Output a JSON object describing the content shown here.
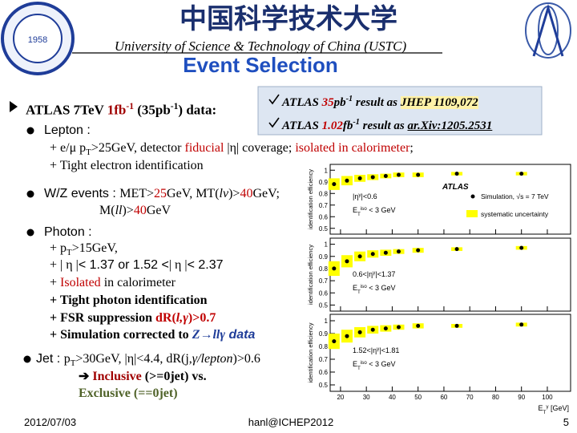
{
  "header": {
    "logo_year": "1958",
    "chinese_title": "中国科学技术大学",
    "university": "University of Science & Technology of China (USTC)",
    "title": "Event Selection"
  },
  "references": [
    [
      {
        "t": "ATLAS "
      },
      {
        "t": "35",
        "c": "#c00000"
      },
      {
        "t": "pb"
      },
      {
        "t": "-1",
        "s": "sup"
      },
      {
        "t": " result as  "
      },
      {
        "t": "JHEP 1109,072",
        "b": true,
        "h": "#fff2a8"
      }
    ],
    [
      {
        "t": "ATLAS "
      },
      {
        "t": "1.02",
        "c": "#c00000"
      },
      {
        "t": "fb"
      },
      {
        "t": "-1",
        "s": "sup"
      },
      {
        "t": " result as "
      },
      {
        "t": "ar.Xiv:1205.2531",
        "b": true,
        "u": true
      }
    ]
  ],
  "summary": [
    {
      "t": "ATLAS  7TeV "
    },
    {
      "t": "1fb",
      "c": "#a00000"
    },
    {
      "t": "-1",
      "s": "sup",
      "c": "#a00000"
    },
    {
      "t": " (35pb"
    },
    {
      "t": "-1",
      "s": "sup"
    },
    {
      "t": ")  data:"
    }
  ],
  "bullets": [
    [
      {
        "t": "Lepton :",
        "f": "sans"
      }
    ],
    [
      {
        "t": "+ e/"
      },
      {
        "t": "μ"
      },
      {
        "t": " p"
      },
      {
        "t": "T",
        "s": "sub"
      },
      {
        "t": ">25GeV, detector "
      },
      {
        "t": "fiducial",
        "c": "#c00000"
      },
      {
        "t": " |"
      },
      {
        "t": "η"
      },
      {
        "t": "| coverage;  "
      },
      {
        "t": "isolated in calorimeter",
        "c": "#c00000"
      },
      {
        "t": ";"
      }
    ],
    [
      {
        "t": "+ Tight electron identification"
      }
    ],
    [
      {
        "t": "W/Z events",
        "f": "sans"
      },
      {
        "t": " : ",
        "f": "sans"
      },
      {
        "t": "MET>"
      },
      {
        "t": "25",
        "c": "#c00000"
      },
      {
        "t": "GeV, MT("
      },
      {
        "t": "lν",
        "i": true
      },
      {
        "t": ")>"
      },
      {
        "t": "40",
        "c": "#c00000"
      },
      {
        "t": "GeV;"
      }
    ],
    [
      {
        "t": "M("
      },
      {
        "t": "ll",
        "i": true
      },
      {
        "t": ")>"
      },
      {
        "t": "40",
        "c": "#c00000"
      },
      {
        "t": "GeV"
      }
    ],
    [
      {
        "t": "Photon :",
        "f": "sans"
      }
    ],
    [
      {
        "t": "+ p"
      },
      {
        "t": "T",
        "s": "sub"
      },
      {
        "t": ">15GeV,"
      }
    ],
    [
      {
        "t": "+ | "
      },
      {
        "t": "η"
      },
      {
        "t": " |"
      },
      {
        "t": "< 1.37 or 1.52 <",
        "f": "sans"
      },
      {
        "t": "| "
      },
      {
        "t": "η"
      },
      {
        "t": " |"
      },
      {
        "t": "< 2.37",
        "f": "sans"
      }
    ],
    [
      {
        "t": "+ "
      },
      {
        "t": "Isolated",
        "c": "#c00000"
      },
      {
        "t": " in calorimeter"
      }
    ],
    [
      {
        "t": "+ Tight photon identification"
      }
    ],
    [
      {
        "t": "+ FSR suppression "
      },
      {
        "t": "dR(",
        "c": "#c00000"
      },
      {
        "t": "l,γ",
        "i": true,
        "c": "#c00000"
      },
      {
        "t": ")>0.7",
        "c": "#c00000"
      }
    ],
    [
      {
        "t": "+ Simulation corrected to "
      },
      {
        "t": "Z",
        "i": true,
        "c": "#1f3d99"
      },
      {
        "t": "→",
        "c": "#1f3d99"
      },
      {
        "t": "llγ",
        "i": true,
        "c": "#1f3d99"
      },
      {
        "t": "  data",
        "f": "sans",
        "i": true,
        "c": "#1f3d99"
      }
    ],
    [
      {
        "t": "Jet",
        "f": "sans"
      },
      {
        "t": " : ",
        "f": "sans"
      },
      {
        "t": "p"
      },
      {
        "t": "T",
        "s": "sub"
      },
      {
        "t": ">30GeV, |"
      },
      {
        "t": "η"
      },
      {
        "t": "|<4.4, dR(j,"
      },
      {
        "t": "γ/lepton",
        "i": true
      },
      {
        "t": ")>0.6"
      }
    ],
    [
      {
        "t": "➔ "
      },
      {
        "t": "Inclusive",
        "c": "#a00000"
      },
      {
        "t": " (>=0jet) vs."
      }
    ],
    [
      {
        "t": "Exclusive (==0jet)",
        "c": "#4f6228"
      }
    ]
  ],
  "figure": {
    "type": "scatter",
    "xlim": [
      16,
      109
    ],
    "xticks": [
      20,
      30,
      40,
      50,
      60,
      70,
      80,
      90,
      100
    ],
    "ylim": [
      0.45,
      1.05
    ],
    "yticks": [
      0.5,
      0.6,
      0.7,
      0.8,
      0.9,
      1
    ],
    "ylabel": "identification efficiency",
    "xlabel": [
      {
        "t": "E"
      },
      {
        "t": "T",
        "s": "sub"
      },
      {
        "t": "γ",
        "s": "sup"
      },
      {
        "t": " [GeV]"
      }
    ],
    "experiment": "ATLAS",
    "marker_color": "#000000",
    "band_color": "#ffff00",
    "legend": {
      "points": "Simulation, √s = 7 TeV",
      "band": "systematic uncertainty"
    },
    "panels": [
      {
        "labels": [
          [
            {
              "t": "|η"
            },
            {
              "t": "γ",
              "s": "sup"
            },
            {
              "t": "|<0.6"
            }
          ],
          [
            {
              "t": "E"
            },
            {
              "t": "T",
              "s": "sub"
            },
            {
              "t": "iso",
              "s": "sup"
            },
            {
              "t": " < 3 GeV"
            }
          ]
        ],
        "x": [
          17.5,
          22.5,
          27.5,
          32.5,
          37.5,
          42.5,
          50,
          65,
          90
        ],
        "values": [
          0.88,
          0.91,
          0.93,
          0.94,
          0.95,
          0.96,
          0.96,
          0.97,
          0.97
        ],
        "errors": [
          0.05,
          0.04,
          0.03,
          0.025,
          0.02,
          0.02,
          0.02,
          0.015,
          0.015
        ]
      },
      {
        "labels": [
          [
            {
              "t": "0.6<|η"
            },
            {
              "t": "γ",
              "s": "sup"
            },
            {
              "t": "|<1.37"
            }
          ],
          [
            {
              "t": "E"
            },
            {
              "t": "T",
              "s": "sub"
            },
            {
              "t": "iso",
              "s": "sup"
            },
            {
              "t": " < 3 GeV"
            }
          ]
        ],
        "x": [
          17.5,
          22.5,
          27.5,
          32.5,
          37.5,
          42.5,
          50,
          65,
          90
        ],
        "values": [
          0.8,
          0.86,
          0.9,
          0.92,
          0.93,
          0.94,
          0.95,
          0.96,
          0.97
        ],
        "errors": [
          0.06,
          0.05,
          0.04,
          0.03,
          0.025,
          0.02,
          0.02,
          0.015,
          0.015
        ]
      },
      {
        "labels": [
          [
            {
              "t": "1.52<|η"
            },
            {
              "t": "γ",
              "s": "sup"
            },
            {
              "t": "|<1.81"
            }
          ],
          [
            {
              "t": "E"
            },
            {
              "t": "T",
              "s": "sub"
            },
            {
              "t": "iso",
              "s": "sup"
            },
            {
              "t": " < 3 GeV"
            }
          ]
        ],
        "x": [
          17.5,
          22.5,
          27.5,
          32.5,
          37.5,
          42.5,
          50,
          65,
          90
        ],
        "values": [
          0.84,
          0.88,
          0.91,
          0.93,
          0.94,
          0.95,
          0.96,
          0.96,
          0.97
        ],
        "errors": [
          0.06,
          0.05,
          0.04,
          0.03,
          0.025,
          0.02,
          0.02,
          0.015,
          0.015
        ]
      }
    ]
  },
  "footer": {
    "date": "2012/07/03",
    "author": "hanl@ICHEP2012",
    "page": "5"
  }
}
